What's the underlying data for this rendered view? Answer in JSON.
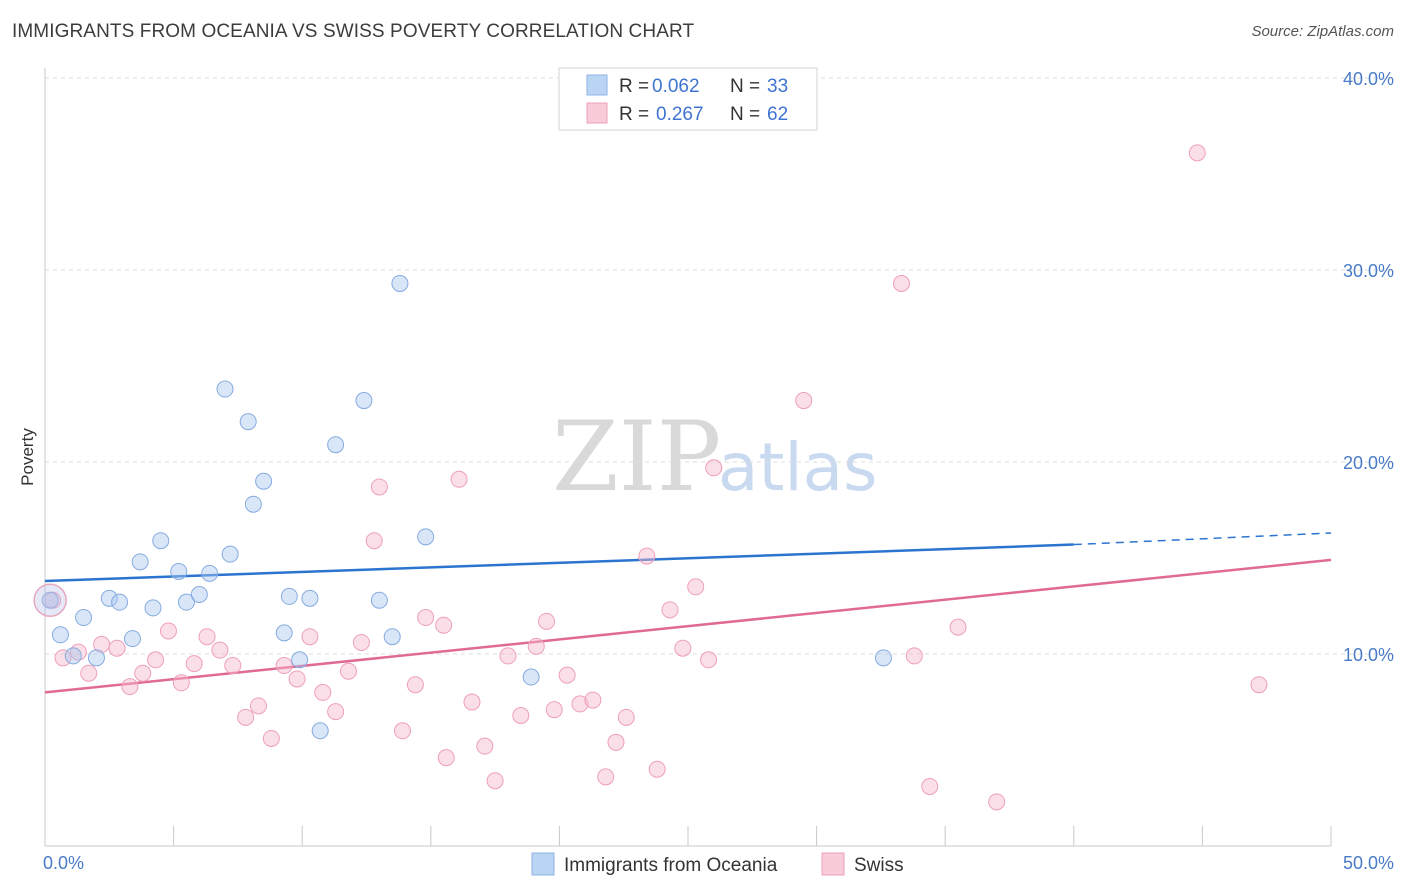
{
  "header": {
    "title": "IMMIGRANTS FROM OCEANIA VS SWISS POVERTY CORRELATION CHART",
    "source": "Source: ZipAtlas.com"
  },
  "watermark": {
    "zip": "ZIP",
    "atlas": "atlas"
  },
  "legend": {
    "items": [
      {
        "r_label": "R =",
        "r_value": "0.062",
        "n_label": "N =",
        "n_value": "33"
      },
      {
        "r_label": "R =",
        "r_value": "0.267",
        "n_label": "N =",
        "n_value": "62"
      }
    ]
  },
  "bottom_legend": {
    "oceania": "Immigrants from Oceania",
    "swiss": "Swiss"
  },
  "chart_data": {
    "type": "scatter",
    "title": "IMMIGRANTS FROM OCEANIA VS SWISS POVERTY CORRELATION CHART",
    "ylabel": "Poverty",
    "xlabel": "",
    "xlim": [
      0,
      50
    ],
    "ylim": [
      0,
      40
    ],
    "x_tick_labels": [
      "0.0%",
      "50.0%"
    ],
    "y_ticks": [
      10,
      20,
      30,
      40
    ],
    "y_tick_labels": [
      "10.0%",
      "20.0%",
      "30.0%",
      "40.0%"
    ],
    "grid": true,
    "legend_position": "top-center",
    "colors": {
      "oceania": "#a9c8f0",
      "oceania_line": "#2b74d0",
      "swiss": "#f6b8cb",
      "swiss_line": "#e06a96"
    },
    "series": [
      {
        "name": "Immigrants from Oceania",
        "r": 0.062,
        "n": 33,
        "trend": {
          "x": [
            0,
            40,
            50
          ],
          "y": [
            13.8,
            15.7,
            16.3
          ],
          "solid_until_x": 40
        },
        "points": [
          [
            0.2,
            12.8
          ],
          [
            0.6,
            11.0
          ],
          [
            1.1,
            9.9
          ],
          [
            1.5,
            11.9
          ],
          [
            2.0,
            9.8
          ],
          [
            2.5,
            12.9
          ],
          [
            2.9,
            12.7
          ],
          [
            3.4,
            10.8
          ],
          [
            3.7,
            14.8
          ],
          [
            4.2,
            12.4
          ],
          [
            4.5,
            15.9
          ],
          [
            5.2,
            14.3
          ],
          [
            5.5,
            12.7
          ],
          [
            6.0,
            13.1
          ],
          [
            6.4,
            14.2
          ],
          [
            7.0,
            23.8
          ],
          [
            7.2,
            15.2
          ],
          [
            7.9,
            22.1
          ],
          [
            8.1,
            17.8
          ],
          [
            8.5,
            19.0
          ],
          [
            9.5,
            13.0
          ],
          [
            9.3,
            11.1
          ],
          [
            9.9,
            9.7
          ],
          [
            10.3,
            12.9
          ],
          [
            10.7,
            6.0
          ],
          [
            11.3,
            20.9
          ],
          [
            12.4,
            23.2
          ],
          [
            13.0,
            12.8
          ],
          [
            13.5,
            10.9
          ],
          [
            13.8,
            29.3
          ],
          [
            14.8,
            16.1
          ],
          [
            18.9,
            8.8
          ],
          [
            32.6,
            9.8
          ]
        ]
      },
      {
        "name": "Swiss",
        "r": 0.267,
        "n": 62,
        "trend": {
          "x": [
            0,
            50
          ],
          "y": [
            8.0,
            14.9
          ]
        },
        "points": [
          [
            0.7,
            9.8
          ],
          [
            1.3,
            10.1
          ],
          [
            1.7,
            9.0
          ],
          [
            2.2,
            10.5
          ],
          [
            2.8,
            10.3
          ],
          [
            3.3,
            8.3
          ],
          [
            3.8,
            9.0
          ],
          [
            4.3,
            9.7
          ],
          [
            4.8,
            11.2
          ],
          [
            5.3,
            8.5
          ],
          [
            5.8,
            9.5
          ],
          [
            6.3,
            10.9
          ],
          [
            6.8,
            10.2
          ],
          [
            7.3,
            9.4
          ],
          [
            7.8,
            6.7
          ],
          [
            8.3,
            7.3
          ],
          [
            8.8,
            5.6
          ],
          [
            9.3,
            9.4
          ],
          [
            9.8,
            8.7
          ],
          [
            10.3,
            10.9
          ],
          [
            10.8,
            8.0
          ],
          [
            11.3,
            7.0
          ],
          [
            11.8,
            9.1
          ],
          [
            12.3,
            10.6
          ],
          [
            12.8,
            15.9
          ],
          [
            13.0,
            18.7
          ],
          [
            13.9,
            6.0
          ],
          [
            14.4,
            8.4
          ],
          [
            14.8,
            11.9
          ],
          [
            15.5,
            11.5
          ],
          [
            15.6,
            4.6
          ],
          [
            16.1,
            19.1
          ],
          [
            16.6,
            7.5
          ],
          [
            17.1,
            5.2
          ],
          [
            17.5,
            3.4
          ],
          [
            18.0,
            9.9
          ],
          [
            18.5,
            6.8
          ],
          [
            19.1,
            10.4
          ],
          [
            19.5,
            11.7
          ],
          [
            19.8,
            7.1
          ],
          [
            20.3,
            8.9
          ],
          [
            20.8,
            7.4
          ],
          [
            21.3,
            7.6
          ],
          [
            21.8,
            3.6
          ],
          [
            22.2,
            5.4
          ],
          [
            22.6,
            6.7
          ],
          [
            23.4,
            15.1
          ],
          [
            23.8,
            4.0
          ],
          [
            24.3,
            12.3
          ],
          [
            24.8,
            10.3
          ],
          [
            25.3,
            13.5
          ],
          [
            25.8,
            9.7
          ],
          [
            26.0,
            19.7
          ],
          [
            29.5,
            23.2
          ],
          [
            33.3,
            29.3
          ],
          [
            33.8,
            9.9
          ],
          [
            34.4,
            3.1
          ],
          [
            35.5,
            11.4
          ],
          [
            37.0,
            2.3
          ],
          [
            44.8,
            36.1
          ],
          [
            47.2,
            8.4
          ],
          [
            0.3,
            12.8
          ]
        ]
      }
    ]
  }
}
